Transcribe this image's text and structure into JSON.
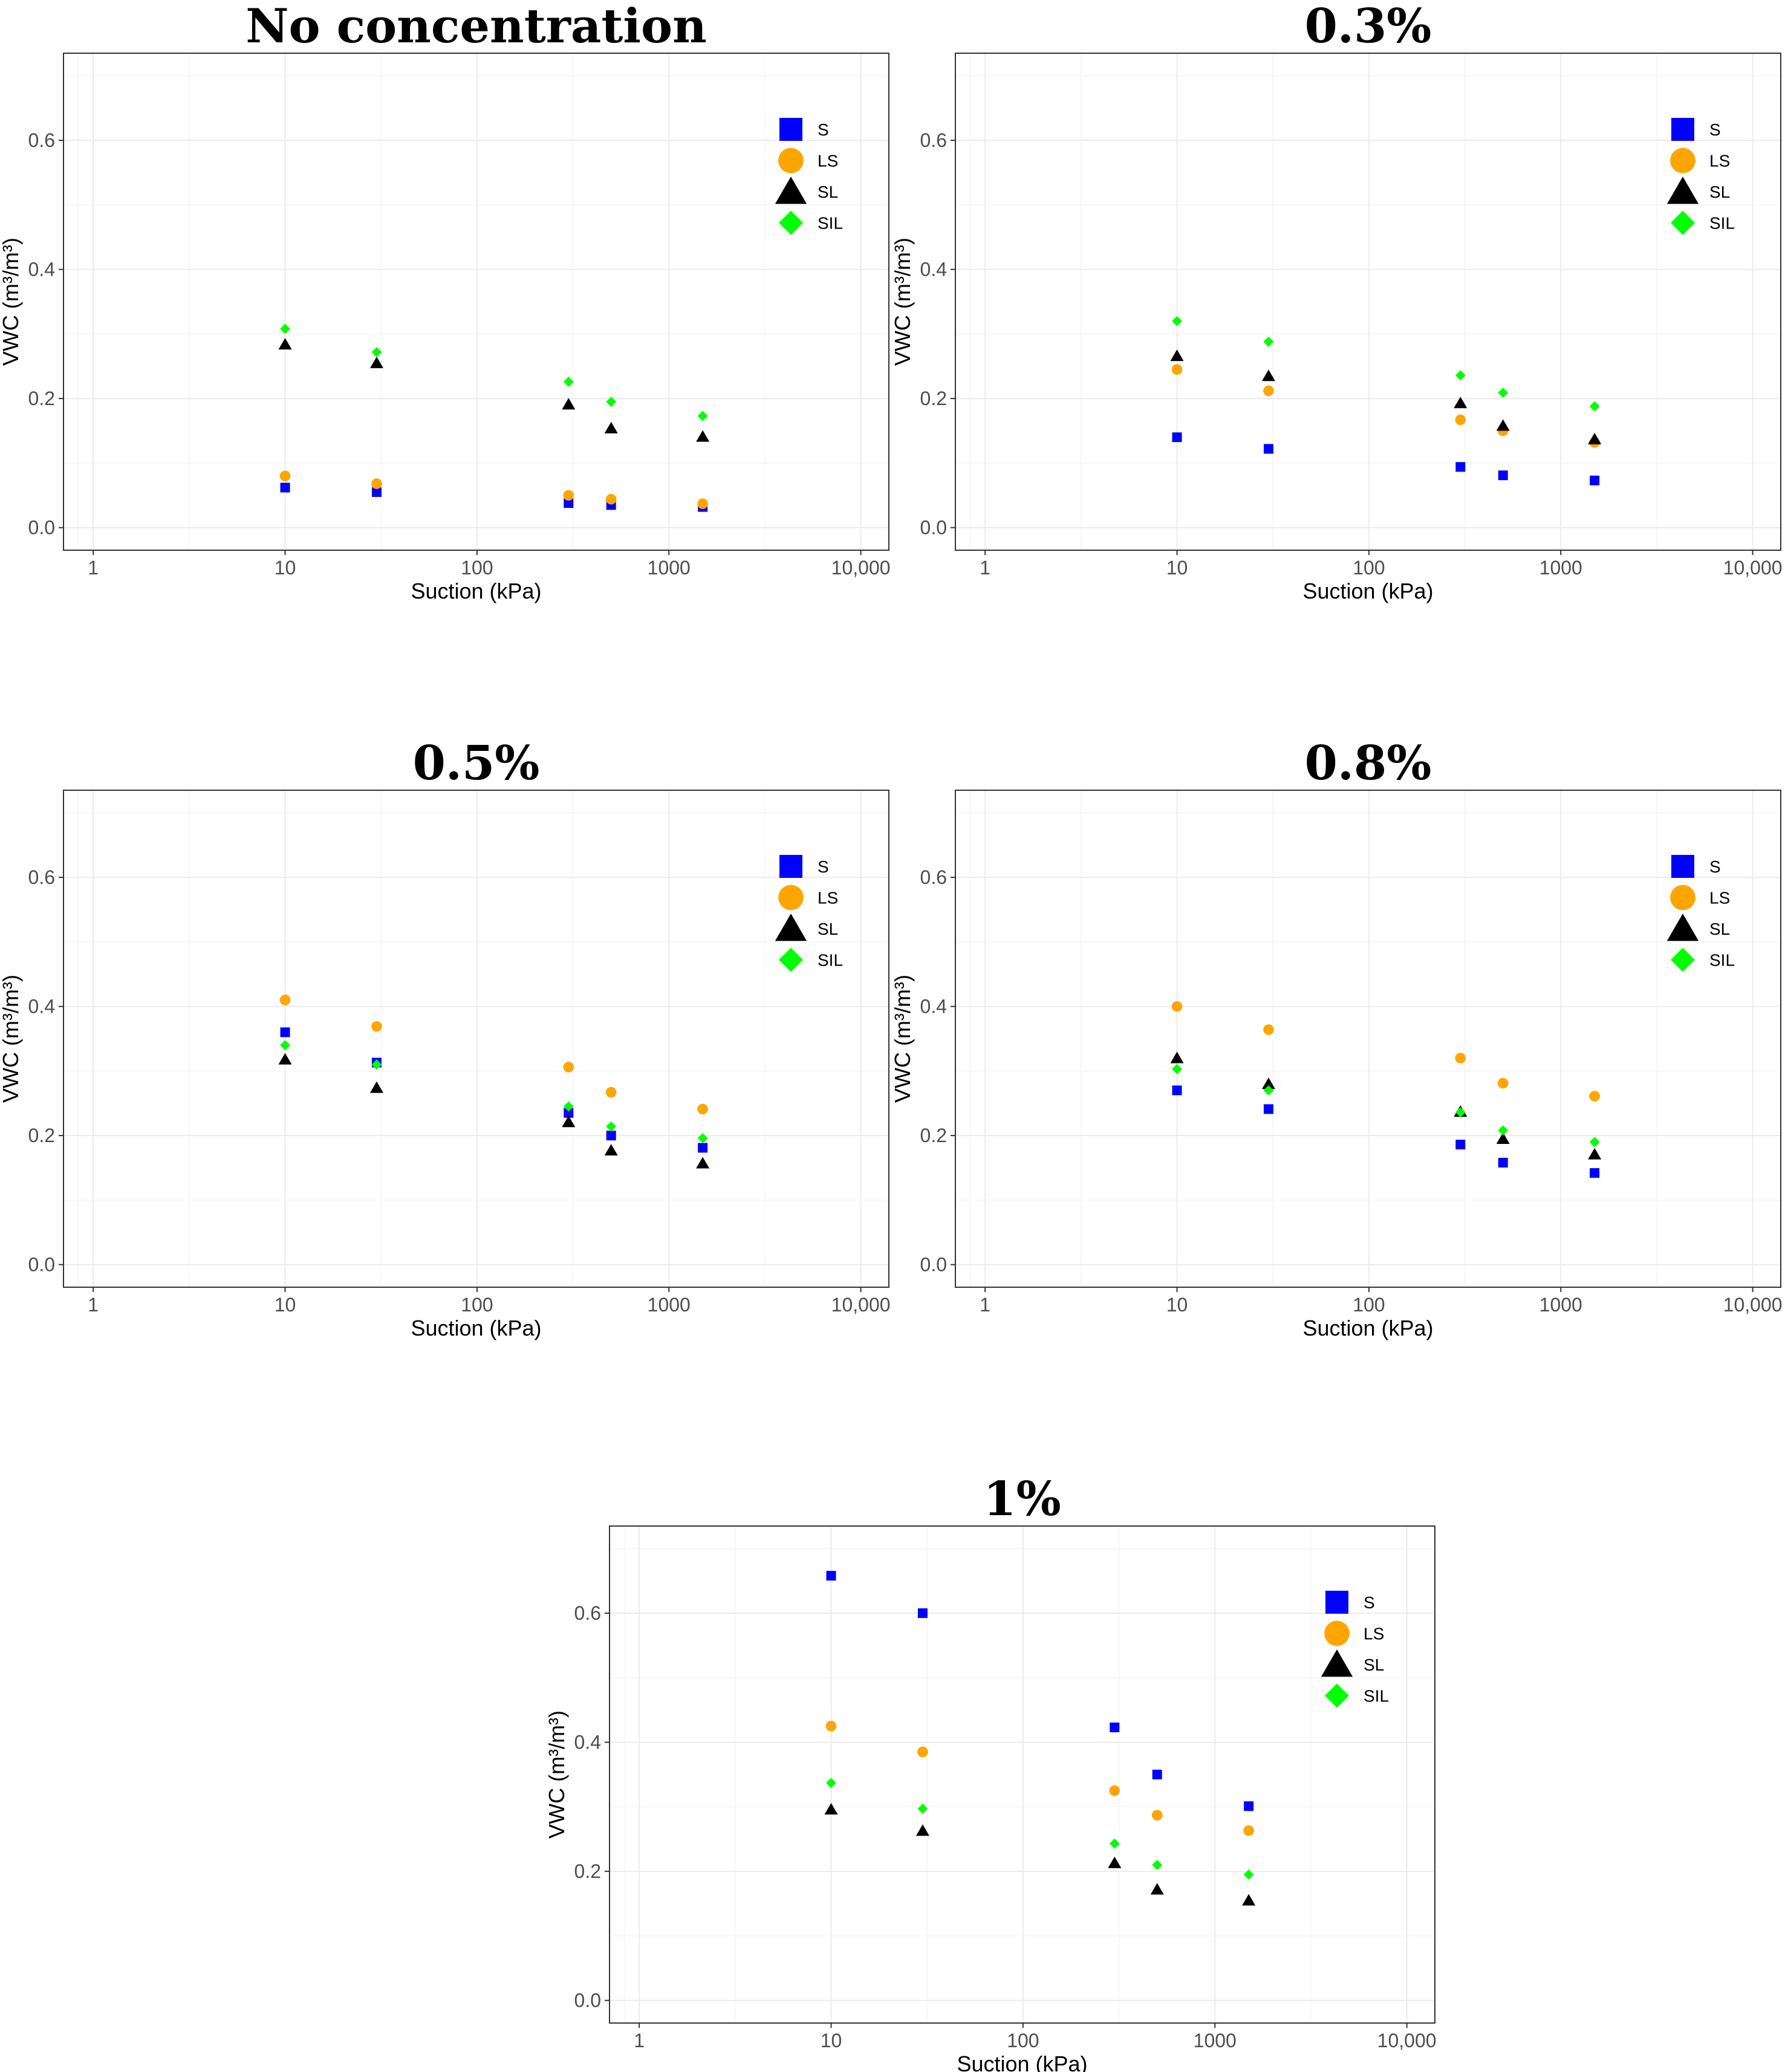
{
  "figure": {
    "series_styles": [
      {
        "name": "S",
        "shape": "square",
        "color": "#0000ff"
      },
      {
        "name": "LS",
        "shape": "circle",
        "color": "#ffa500"
      },
      {
        "name": "SL",
        "shape": "triangle",
        "color": "#000000"
      },
      {
        "name": "SIL",
        "shape": "diamond",
        "color": "#00ff00"
      }
    ]
  },
  "chart_data": [
    {
      "type": "scatter",
      "title": "No concentration",
      "xlabel": "Suction (kPa)",
      "ylabel": "VWC (m³/m³)",
      "xscale": "log",
      "xlim": [
        0.7,
        14000
      ],
      "ylim": [
        -0.035,
        0.735
      ],
      "xticks": [
        1,
        10,
        100,
        1000,
        10000
      ],
      "xtick_labels": [
        "1",
        "10",
        "100",
        "1000",
        "10,000"
      ],
      "yticks": [
        0.0,
        0.2,
        0.4,
        0.6
      ],
      "ytick_labels": [
        "0.0",
        "0.2",
        "0.4",
        "0.6"
      ],
      "legend_position": "top-right",
      "x": [
        10,
        30,
        300,
        500,
        1500
      ],
      "series": [
        {
          "name": "S",
          "values": [
            0.062,
            0.055,
            0.038,
            0.035,
            0.032
          ]
        },
        {
          "name": "LS",
          "values": [
            0.08,
            0.068,
            0.05,
            0.044,
            0.037
          ]
        },
        {
          "name": "SL",
          "values": [
            0.284,
            0.255,
            0.191,
            0.154,
            0.141
          ]
        },
        {
          "name": "SIL",
          "values": [
            0.308,
            0.272,
            0.226,
            0.195,
            0.173
          ]
        }
      ]
    },
    {
      "type": "scatter",
      "title": "0.3%",
      "xlabel": "Suction (kPa)",
      "ylabel": "VWC (m³/m³)",
      "xscale": "log",
      "xlim": [
        0.7,
        14000
      ],
      "ylim": [
        -0.035,
        0.735
      ],
      "xticks": [
        1,
        10,
        100,
        1000,
        10000
      ],
      "xtick_labels": [
        "1",
        "10",
        "100",
        "1000",
        "10,000"
      ],
      "yticks": [
        0.0,
        0.2,
        0.4,
        0.6
      ],
      "ytick_labels": [
        "0.0",
        "0.2",
        "0.4",
        "0.6"
      ],
      "legend_position": "top-right",
      "x": [
        10,
        30,
        300,
        500,
        1500
      ],
      "series": [
        {
          "name": "S",
          "values": [
            0.14,
            0.122,
            0.094,
            0.081,
            0.073
          ]
        },
        {
          "name": "LS",
          "values": [
            0.245,
            0.212,
            0.167,
            0.15,
            0.132
          ]
        },
        {
          "name": "SL",
          "values": [
            0.266,
            0.235,
            0.193,
            0.158,
            0.137
          ]
        },
        {
          "name": "SIL",
          "values": [
            0.32,
            0.288,
            0.236,
            0.209,
            0.188
          ]
        }
      ]
    },
    {
      "type": "scatter",
      "title": "0.5%",
      "xlabel": "Suction (kPa)",
      "ylabel": "VWC (m³/m³)",
      "xscale": "log",
      "xlim": [
        0.7,
        14000
      ],
      "ylim": [
        -0.035,
        0.735
      ],
      "xticks": [
        1,
        10,
        100,
        1000,
        10000
      ],
      "xtick_labels": [
        "1",
        "10",
        "100",
        "1000",
        "10,000"
      ],
      "yticks": [
        0.0,
        0.2,
        0.4,
        0.6
      ],
      "ytick_labels": [
        "0.0",
        "0.2",
        "0.4",
        "0.6"
      ],
      "legend_position": "top-right",
      "x": [
        10,
        30,
        300,
        500,
        1500
      ],
      "series": [
        {
          "name": "S",
          "values": [
            0.36,
            0.313,
            0.235,
            0.2,
            0.181
          ]
        },
        {
          "name": "LS",
          "values": [
            0.41,
            0.369,
            0.306,
            0.267,
            0.241
          ]
        },
        {
          "name": "SL",
          "values": [
            0.318,
            0.274,
            0.221,
            0.177,
            0.157
          ]
        },
        {
          "name": "SIL",
          "values": [
            0.34,
            0.31,
            0.245,
            0.214,
            0.196
          ]
        }
      ]
    },
    {
      "type": "scatter",
      "title": "0.8%",
      "xlabel": "Suction (kPa)",
      "ylabel": "VWC (m³/m³)",
      "xscale": "log",
      "xlim": [
        0.7,
        14000
      ],
      "ylim": [
        -0.035,
        0.735
      ],
      "xticks": [
        1,
        10,
        100,
        1000,
        10000
      ],
      "xtick_labels": [
        "1",
        "10",
        "100",
        "1000",
        "10,000"
      ],
      "yticks": [
        0.0,
        0.2,
        0.4,
        0.6
      ],
      "ytick_labels": [
        "0.0",
        "0.2",
        "0.4",
        "0.6"
      ],
      "legend_position": "top-right",
      "x": [
        10,
        30,
        300,
        500,
        1500
      ],
      "series": [
        {
          "name": "S",
          "values": [
            0.27,
            0.241,
            0.186,
            0.158,
            0.142
          ]
        },
        {
          "name": "LS",
          "values": [
            0.4,
            0.364,
            0.32,
            0.281,
            0.261
          ]
        },
        {
          "name": "SL",
          "values": [
            0.32,
            0.28,
            0.237,
            0.195,
            0.171
          ]
        },
        {
          "name": "SIL",
          "values": [
            0.303,
            0.27,
            0.236,
            0.208,
            0.19
          ]
        }
      ]
    },
    {
      "type": "scatter",
      "title": "1%",
      "xlabel": "Suction (kPa)",
      "ylabel": "VWC (m³/m³)",
      "xscale": "log",
      "xlim": [
        0.7,
        14000
      ],
      "ylim": [
        -0.035,
        0.735
      ],
      "xticks": [
        1,
        10,
        100,
        1000,
        10000
      ],
      "xtick_labels": [
        "1",
        "10",
        "100",
        "1000",
        "10,000"
      ],
      "yticks": [
        0.0,
        0.2,
        0.4,
        0.6
      ],
      "ytick_labels": [
        "0.0",
        "0.2",
        "0.4",
        "0.6"
      ],
      "legend_position": "top-right",
      "x": [
        10,
        30,
        300,
        500,
        1500
      ],
      "series": [
        {
          "name": "S",
          "values": [
            0.658,
            0.6,
            0.423,
            0.35,
            0.301
          ]
        },
        {
          "name": "LS",
          "values": [
            0.425,
            0.385,
            0.325,
            0.287,
            0.263
          ]
        },
        {
          "name": "SL",
          "values": [
            0.296,
            0.263,
            0.213,
            0.172,
            0.155
          ]
        },
        {
          "name": "SIL",
          "values": [
            0.337,
            0.297,
            0.243,
            0.21,
            0.195
          ]
        }
      ]
    }
  ]
}
